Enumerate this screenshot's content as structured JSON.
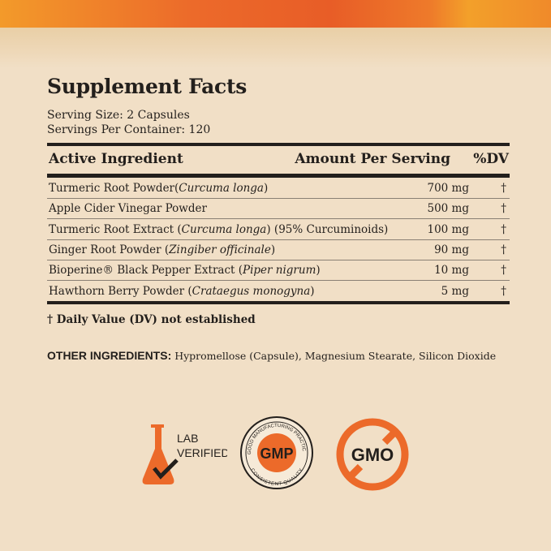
{
  "title": "Supplement Facts",
  "serving_size": "Serving Size: 2 Capsules",
  "servings_per_container": "Servings Per Container: 120",
  "headers": {
    "ingredient": "Active Ingredient",
    "amount": "Amount Per Serving",
    "dv": "%DV"
  },
  "rows": [
    {
      "name": "Turmeric Root Powder(",
      "latin": "Curcuma longa",
      "suffix": ")",
      "amount": "700 mg",
      "dv": "†"
    },
    {
      "name": "Apple Cider Vinegar Powder",
      "latin": "",
      "suffix": "",
      "amount": "500 mg",
      "dv": "†"
    },
    {
      "name": "Turmeric Root Extract (",
      "latin": "Curcuma longa",
      "suffix": ") (95% Curcuminoids)",
      "amount": "100 mg",
      "dv": "†"
    },
    {
      "name": "Ginger Root Powder (",
      "latin": "Zingiber officinale",
      "suffix": ")",
      "amount": "90 mg",
      "dv": "†"
    },
    {
      "name": "Bioperine® Black Pepper Extract (",
      "latin": "Piper nigrum",
      "suffix": ")",
      "amount": "10 mg",
      "dv": "†"
    },
    {
      "name": "Hawthorn Berry Powder (",
      "latin": "Crataegus monogyna",
      "suffix": ")",
      "amount": "5 mg",
      "dv": "†"
    }
  ],
  "footnote": "† Daily Value (DV) not established",
  "other_label": "OTHER INGREDIENTS:",
  "other_value": " Hypromellose (Capsule), Magnesium Stearate, Silicon Dioxide",
  "badges": {
    "lab": {
      "line1": "LAB",
      "line2": "VERIFIED",
      "icon": "flask-check-icon"
    },
    "gmp": {
      "center": "GMP",
      "top": "GOOD MANUFACTURING PRACTICE",
      "bottom": "CONSISTENT QUALITY"
    },
    "gmo": {
      "center": "GMO",
      "icon": "no-gmo-icon"
    }
  },
  "colors": {
    "accent": "#ec6a2a",
    "text": "#231f1c",
    "background": "#f1dfc6"
  }
}
